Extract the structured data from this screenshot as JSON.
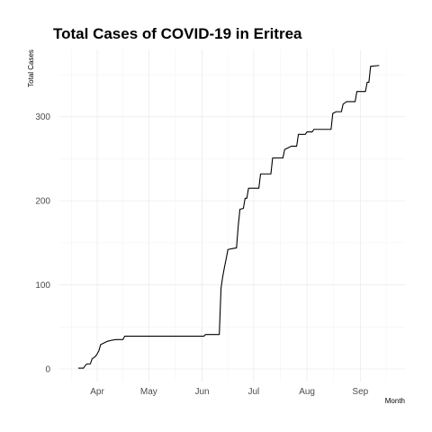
{
  "chart_data": {
    "type": "line",
    "title": "Total Cases of COVID-19 in Eritrea",
    "xlabel": "Month",
    "ylabel": "Total Cases",
    "x_ticks": [
      {
        "date": "2020-04-01",
        "label": "Apr"
      },
      {
        "date": "2020-05-01",
        "label": "May"
      },
      {
        "date": "2020-06-01",
        "label": "Jun"
      },
      {
        "date": "2020-07-01",
        "label": "Jul"
      },
      {
        "date": "2020-08-01",
        "label": "Aug"
      },
      {
        "date": "2020-09-01",
        "label": "Sep"
      }
    ],
    "y_ticks": [
      0,
      100,
      200,
      300
    ],
    "xlim": [
      "2020-03-10",
      "2020-09-27"
    ],
    "ylim": [
      -15,
      380
    ],
    "grid": true,
    "series": [
      {
        "color": "#000000",
        "step": true,
        "points": [
          [
            "2020-03-21",
            1
          ],
          [
            "2020-03-24",
            1
          ],
          [
            "2020-03-25",
            4
          ],
          [
            "2020-03-26",
            6
          ],
          [
            "2020-03-28",
            6
          ],
          [
            "2020-03-29",
            12
          ],
          [
            "2020-03-31",
            15
          ],
          [
            "2020-04-01",
            18
          ],
          [
            "2020-04-02",
            22
          ],
          [
            "2020-04-03",
            29
          ],
          [
            "2020-04-05",
            31
          ],
          [
            "2020-04-07",
            33
          ],
          [
            "2020-04-09",
            34
          ],
          [
            "2020-04-12",
            35
          ],
          [
            "2020-04-16",
            35
          ],
          [
            "2020-04-17",
            39
          ],
          [
            "2020-06-02",
            39
          ],
          [
            "2020-06-03",
            41
          ],
          [
            "2020-06-11",
            41
          ],
          [
            "2020-06-12",
            96
          ],
          [
            "2020-06-13",
            110
          ],
          [
            "2020-06-14",
            121
          ],
          [
            "2020-06-15",
            131
          ],
          [
            "2020-06-16",
            142
          ],
          [
            "2020-06-18",
            143
          ],
          [
            "2020-06-21",
            144
          ],
          [
            "2020-06-22",
            170
          ],
          [
            "2020-06-23",
            190
          ],
          [
            "2020-06-25",
            191
          ],
          [
            "2020-06-26",
            203
          ],
          [
            "2020-06-27",
            203
          ],
          [
            "2020-06-28",
            215
          ],
          [
            "2020-07-04",
            215
          ],
          [
            "2020-07-05",
            232
          ],
          [
            "2020-07-11",
            232
          ],
          [
            "2020-07-12",
            251
          ],
          [
            "2020-07-18",
            251
          ],
          [
            "2020-07-19",
            261
          ],
          [
            "2020-07-21",
            263
          ],
          [
            "2020-07-23",
            265
          ],
          [
            "2020-07-26",
            265
          ],
          [
            "2020-07-27",
            279
          ],
          [
            "2020-07-31",
            279
          ],
          [
            "2020-08-01",
            282
          ],
          [
            "2020-08-04",
            282
          ],
          [
            "2020-08-05",
            285
          ],
          [
            "2020-08-15",
            285
          ],
          [
            "2020-08-16",
            304
          ],
          [
            "2020-08-18",
            306
          ],
          [
            "2020-08-21",
            306
          ],
          [
            "2020-08-22",
            315
          ],
          [
            "2020-08-24",
            318
          ],
          [
            "2020-08-29",
            318
          ],
          [
            "2020-08-30",
            330
          ],
          [
            "2020-09-04",
            330
          ],
          [
            "2020-09-05",
            341
          ],
          [
            "2020-09-06",
            341
          ],
          [
            "2020-09-07",
            360
          ],
          [
            "2020-09-12",
            361
          ]
        ]
      }
    ]
  }
}
